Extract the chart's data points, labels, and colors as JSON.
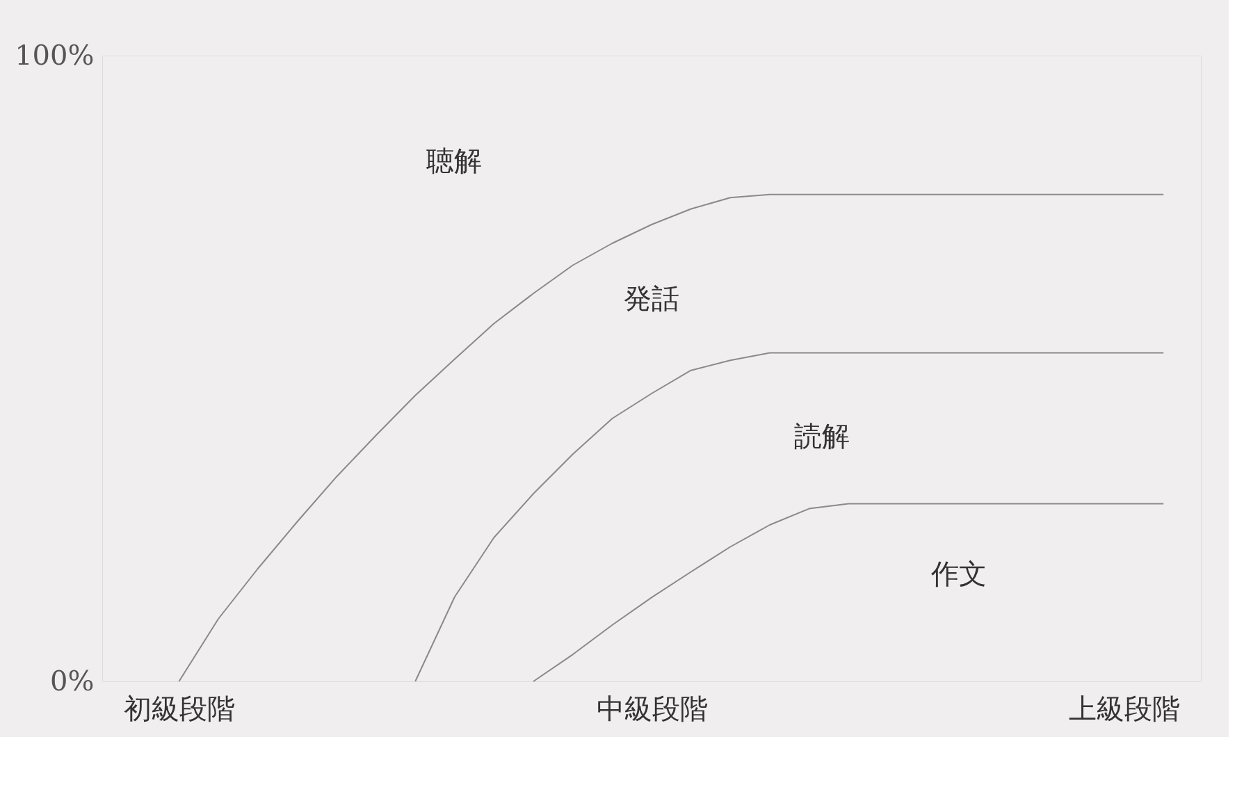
{
  "chart_data": {
    "type": "line",
    "ylim": [
      0,
      100
    ],
    "categories": [
      null,
      "初級段階",
      null,
      null,
      null,
      null,
      null,
      null,
      null,
      null,
      null,
      null,
      null,
      "中級段階",
      null,
      null,
      null,
      null,
      null,
      null,
      null,
      null,
      null,
      null,
      null,
      "上級段階",
      null
    ],
    "yticks": [
      {
        "value": 0,
        "label": "0%"
      },
      {
        "value": 100,
        "label": "100%"
      }
    ],
    "grid": false,
    "marker": "none",
    "line_style": "solid",
    "series": [
      {
        "color": "#8a8a8a",
        "values": [
          null,
          0,
          10,
          18,
          25.5,
          32.7,
          39.3,
          45.7,
          51.5,
          57.2,
          62,
          66.5,
          70,
          73,
          75.5,
          77.3,
          77.8,
          77.8,
          77.8,
          77.8,
          77.8,
          77.8,
          77.8,
          77.8,
          77.8,
          77.8,
          77.8
        ]
      },
      {
        "color": "#8a8a8a",
        "values": [
          null,
          null,
          null,
          null,
          null,
          null,
          null,
          0,
          13.5,
          23,
          30,
          36.3,
          42,
          46,
          49.7,
          51.3,
          52.5,
          52.5,
          52.5,
          52.5,
          52.5,
          52.5,
          52.5,
          52.5,
          52.5,
          52.5,
          52.5
        ]
      },
      {
        "color": "#8a8a8a",
        "values": [
          null,
          null,
          null,
          null,
          null,
          null,
          null,
          null,
          null,
          null,
          0,
          4.3,
          9,
          13.4,
          17.5,
          21.5,
          25,
          27.6,
          28.4,
          28.4,
          28.4,
          28.4,
          28.4,
          28.4,
          28.4,
          28.4,
          28.4
        ]
      }
    ],
    "annotations": [
      "聴解",
      "発話",
      "読解",
      "作文"
    ]
  }
}
